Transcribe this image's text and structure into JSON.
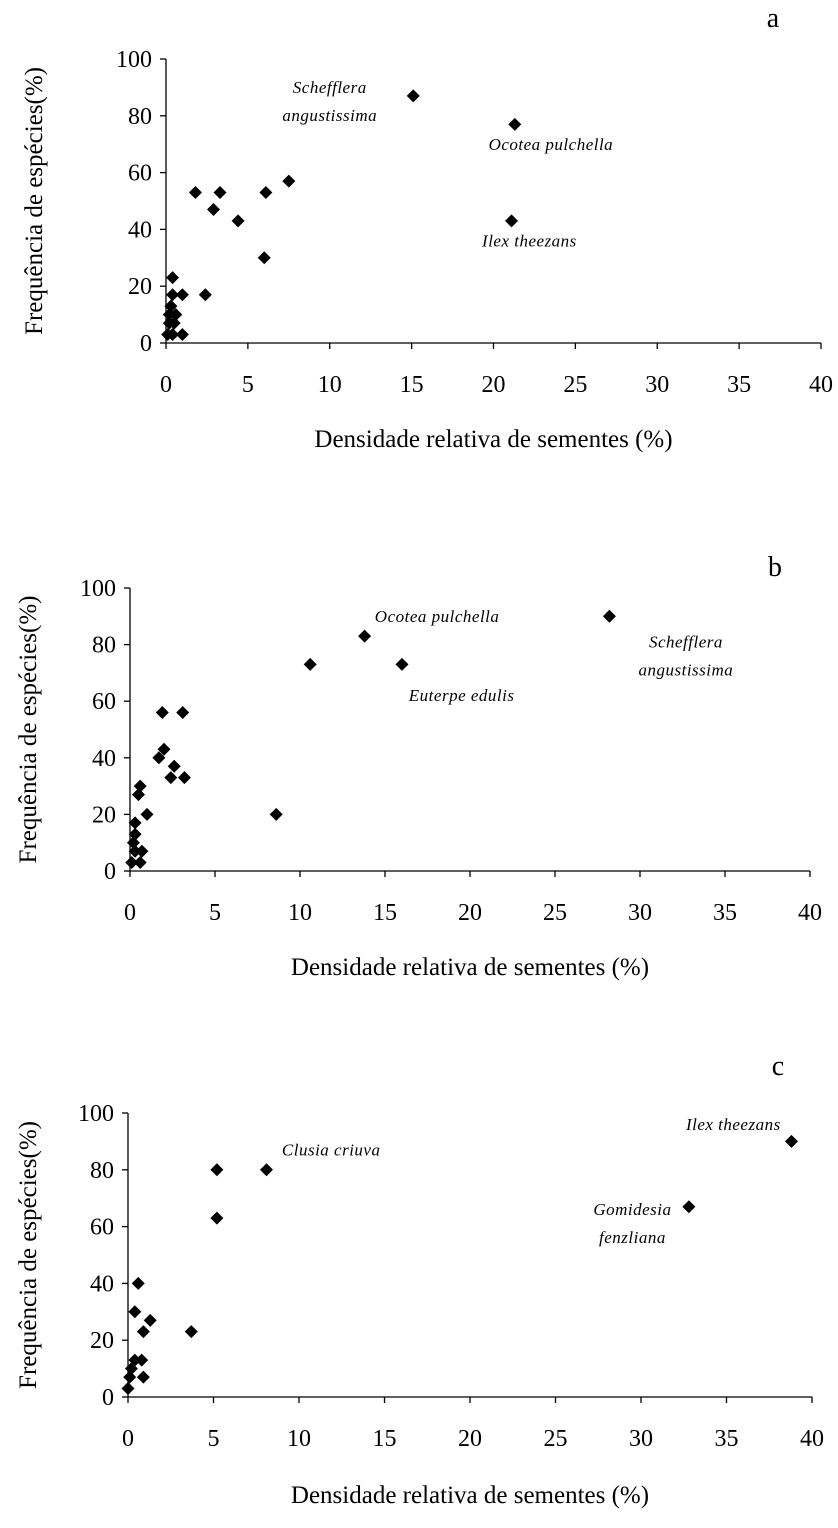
{
  "figure": {
    "panels": [
      "a",
      "b",
      "c"
    ]
  },
  "chart_data": [
    {
      "type": "scatter",
      "panel_label": "a",
      "xlabel": "Densidade relativa de sementes (%)",
      "ylabel": "Frequência de espécies(%)",
      "xlim": [
        0,
        40
      ],
      "ylim": [
        0,
        100
      ],
      "xticks": [
        "0",
        "5",
        "10",
        "15",
        "20",
        "25",
        "30",
        "35",
        "40"
      ],
      "yticks": [
        "0",
        "20",
        "40",
        "60",
        "80",
        "100"
      ],
      "grid": false,
      "points": [
        {
          "x": 15.1,
          "y": 87
        },
        {
          "x": 21.3,
          "y": 77
        },
        {
          "x": 21.1,
          "y": 43
        },
        {
          "x": 7.5,
          "y": 57
        },
        {
          "x": 6.1,
          "y": 53
        },
        {
          "x": 3.3,
          "y": 53
        },
        {
          "x": 1.8,
          "y": 53
        },
        {
          "x": 2.9,
          "y": 47
        },
        {
          "x": 4.4,
          "y": 43
        },
        {
          "x": 6.0,
          "y": 30
        },
        {
          "x": 2.4,
          "y": 17
        },
        {
          "x": 1.0,
          "y": 17
        },
        {
          "x": 0.4,
          "y": 23
        },
        {
          "x": 0.4,
          "y": 17
        },
        {
          "x": 0.3,
          "y": 13
        },
        {
          "x": 0.2,
          "y": 10
        },
        {
          "x": 0.6,
          "y": 10
        },
        {
          "x": 0.2,
          "y": 7
        },
        {
          "x": 0.5,
          "y": 7
        },
        {
          "x": 0.1,
          "y": 3
        },
        {
          "x": 0.4,
          "y": 3
        },
        {
          "x": 1.0,
          "y": 3
        }
      ],
      "annotations": [
        {
          "lines": [
            "Schefflera",
            "angustissima"
          ],
          "x": 10.0,
          "y": 88,
          "anchor": "middle"
        },
        {
          "lines": [
            "Ocotea pulchella"
          ],
          "x": 19.7,
          "y": 68,
          "anchor": "start"
        },
        {
          "lines": [
            "Ilex theezans"
          ],
          "x": 19.3,
          "y": 34,
          "anchor": "start"
        }
      ]
    },
    {
      "type": "scatter",
      "panel_label": "b",
      "xlabel": "Densidade relativa de sementes (%)",
      "ylabel": "Frequência de espécies(%)",
      "xlim": [
        0,
        40
      ],
      "ylim": [
        0,
        100
      ],
      "xticks": [
        "0",
        "5",
        "10",
        "15",
        "20",
        "25",
        "30",
        "35",
        "40"
      ],
      "yticks": [
        "0",
        "20",
        "40",
        "60",
        "80",
        "100"
      ],
      "grid": false,
      "points": [
        {
          "x": 28.2,
          "y": 90
        },
        {
          "x": 13.8,
          "y": 83
        },
        {
          "x": 16.0,
          "y": 73
        },
        {
          "x": 10.6,
          "y": 73
        },
        {
          "x": 8.6,
          "y": 20
        },
        {
          "x": 1.9,
          "y": 56
        },
        {
          "x": 3.1,
          "y": 56
        },
        {
          "x": 2.0,
          "y": 43
        },
        {
          "x": 1.7,
          "y": 40
        },
        {
          "x": 2.6,
          "y": 37
        },
        {
          "x": 2.4,
          "y": 33
        },
        {
          "x": 3.2,
          "y": 33
        },
        {
          "x": 0.6,
          "y": 30
        },
        {
          "x": 0.5,
          "y": 27
        },
        {
          "x": 1.0,
          "y": 20
        },
        {
          "x": 0.3,
          "y": 17
        },
        {
          "x": 0.3,
          "y": 13
        },
        {
          "x": 0.2,
          "y": 10
        },
        {
          "x": 0.3,
          "y": 7
        },
        {
          "x": 0.7,
          "y": 7
        },
        {
          "x": 0.1,
          "y": 3
        },
        {
          "x": 0.6,
          "y": 3
        }
      ],
      "annotations": [
        {
          "lines": [
            "Ocotea pulchella"
          ],
          "x": 14.4,
          "y": 88,
          "anchor": "start"
        },
        {
          "lines": [
            "Euterpe edulis"
          ],
          "x": 16.4,
          "y": 60,
          "anchor": "start"
        },
        {
          "lines": [
            "Schefflera",
            "angustissima"
          ],
          "x": 32.7,
          "y": 79,
          "anchor": "middle"
        }
      ]
    },
    {
      "type": "scatter",
      "panel_label": "c",
      "xlabel": "Densidade relativa de sementes (%)",
      "ylabel": "Frequência de espécies(%)",
      "xlim": [
        0,
        40
      ],
      "ylim": [
        0,
        100
      ],
      "xticks": [
        "0",
        "5",
        "10",
        "15",
        "20",
        "25",
        "30",
        "35",
        "40"
      ],
      "yticks": [
        "0",
        "20",
        "40",
        "60",
        "80",
        "100"
      ],
      "grid": false,
      "points": [
        {
          "x": 38.8,
          "y": 90
        },
        {
          "x": 32.8,
          "y": 67
        },
        {
          "x": 8.1,
          "y": 80
        },
        {
          "x": 5.2,
          "y": 80
        },
        {
          "x": 5.2,
          "y": 63
        },
        {
          "x": 3.7,
          "y": 23
        },
        {
          "x": 0.6,
          "y": 40
        },
        {
          "x": 0.4,
          "y": 30
        },
        {
          "x": 1.3,
          "y": 27
        },
        {
          "x": 0.9,
          "y": 23
        },
        {
          "x": 0.4,
          "y": 13
        },
        {
          "x": 0.8,
          "y": 13
        },
        {
          "x": 0.2,
          "y": 10
        },
        {
          "x": 0.1,
          "y": 7
        },
        {
          "x": 0.9,
          "y": 7
        },
        {
          "x": 0.0,
          "y": 3
        }
      ],
      "annotations": [
        {
          "lines": [
            "Clusia criuva"
          ],
          "x": 9.0,
          "y": 85,
          "anchor": "start"
        },
        {
          "lines": [
            "Ilex theezans"
          ],
          "x": 35.4,
          "y": 94,
          "anchor": "middle"
        },
        {
          "lines": [
            "Gomidesia",
            "fenzliana"
          ],
          "x": 29.5,
          "y": 64,
          "anchor": "middle"
        }
      ]
    }
  ]
}
